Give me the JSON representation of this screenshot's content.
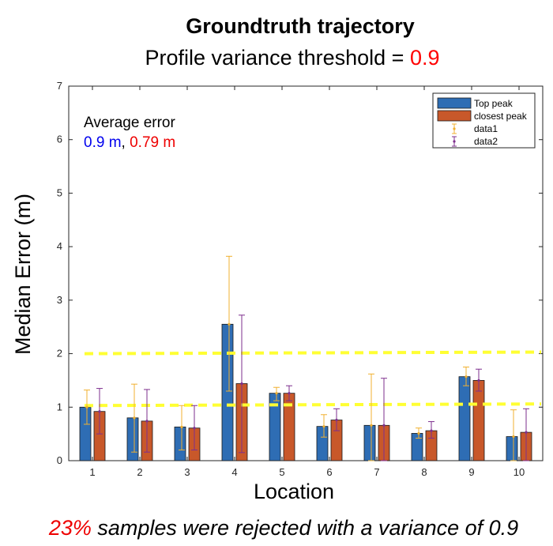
{
  "chart_data": {
    "type": "bar",
    "title": "Groundtruth trajectory",
    "subtitle": {
      "prefix": "Profile variance threshold = ",
      "value": "0.9",
      "value_color": "#ff0000"
    },
    "xlabel": "Location",
    "ylabel": "Median Error (m)",
    "categories": [
      "1",
      "2",
      "3",
      "4",
      "5",
      "6",
      "7",
      "8",
      "9",
      "10"
    ],
    "ylim": [
      0,
      7
    ],
    "yticks": [
      "0",
      "1",
      "2",
      "3",
      "4",
      "5",
      "6",
      "7"
    ],
    "grid": false,
    "legend_position": "top-right",
    "series": [
      {
        "name": "Top peak",
        "color": "#2e6db4",
        "values": [
          1.0,
          0.8,
          0.63,
          2.55,
          1.26,
          0.64,
          0.66,
          0.51,
          1.57,
          0.45
        ],
        "error_low": [
          0.68,
          0.16,
          0.2,
          1.3,
          1.12,
          0.44,
          0.0,
          0.42,
          1.4,
          0.0
        ],
        "error_high": [
          1.32,
          1.43,
          1.03,
          3.82,
          1.37,
          0.86,
          1.62,
          0.61,
          1.75,
          0.95
        ],
        "error_name": "data1",
        "error_color": "#f0b030"
      },
      {
        "name": "closest peak",
        "color": "#c8582a",
        "values": [
          0.92,
          0.74,
          0.61,
          1.44,
          1.26,
          0.76,
          0.66,
          0.56,
          1.5,
          0.53
        ],
        "error_low": [
          0.5,
          0.16,
          0.2,
          0.15,
          1.12,
          0.56,
          0.0,
          0.42,
          1.3,
          0.0
        ],
        "error_high": [
          1.35,
          1.33,
          1.03,
          2.72,
          1.4,
          0.97,
          1.54,
          0.73,
          1.71,
          0.97
        ],
        "error_name": "data2",
        "error_color": "#7e2f8e"
      }
    ],
    "reference_lines": [
      {
        "y": [
          2.0,
          2.03
        ],
        "color": "#ffff33"
      },
      {
        "y": [
          1.03,
          1.06
        ],
        "color": "#ffff33"
      }
    ],
    "annotation": {
      "label": "Average error",
      "value1": "0.9 m",
      "value1_color": "#0000ee",
      "separator": ", ",
      "value2": "0.79 m",
      "value2_color": "#ee0000"
    }
  },
  "footer": {
    "percent": "23%",
    "percent_color": "#ee0000",
    "text": " samples were rejected with a variance of 0.9"
  }
}
